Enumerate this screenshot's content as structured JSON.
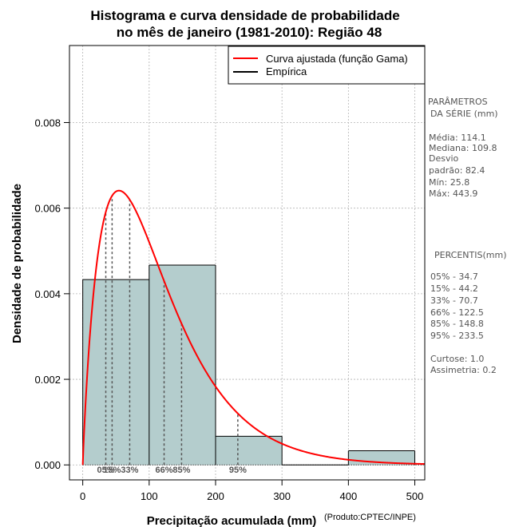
{
  "chart_data": {
    "type": "bar",
    "title_line1": "Histograma e curva densidade de probabilidade",
    "title_line2": "no mês de janeiro (1981-2010): Região 48",
    "xlabel": "Precipitação acumulada (mm)",
    "ylabel": "Densidade de probabilidade",
    "credit": "(Produto:CPTEC/INPE)",
    "xlim": [
      -20,
      515
    ],
    "ylim": [
      -0.00035,
      0.0098
    ],
    "x_ticks": [
      0,
      100,
      200,
      300,
      400,
      500
    ],
    "y_ticks": [
      0,
      0.002,
      0.004,
      0.006,
      0.008
    ],
    "y_tick_labels": [
      "0.000",
      "0.002",
      "0.004",
      "0.006",
      "0.008"
    ],
    "grid": true,
    "bins": [
      {
        "start": 0,
        "end": 100,
        "density": 0.00433
      },
      {
        "start": 100,
        "end": 200,
        "density": 0.00467
      },
      {
        "start": 200,
        "end": 300,
        "density": 0.00067
      },
      {
        "start": 300,
        "end": 400,
        "density": 0.0
      },
      {
        "start": 400,
        "end": 500,
        "density": 0.00033
      }
    ],
    "gamma_fit": {
      "shape": 1.9163,
      "scale": 59.54
    },
    "percentile_markers": [
      {
        "label": "05%",
        "value": 34.7
      },
      {
        "label": "15%",
        "value": 44.2
      },
      {
        "label": "33%",
        "value": 70.7
      },
      {
        "label": "66%",
        "value": 122.5
      },
      {
        "label": "85%",
        "value": 148.8
      },
      {
        "label": "95%",
        "value": 233.5
      }
    ],
    "legend": {
      "position": "top-right",
      "entries": [
        {
          "label": "Curva ajustada (função Gama)",
          "color": "#ff0000"
        },
        {
          "label": "Empírica",
          "color": "#000000"
        }
      ]
    },
    "colors": {
      "bar_fill": "#b4cdcd",
      "curve": "#ff0000",
      "grid": "#b3b3b3",
      "percentile": "#555555"
    }
  },
  "side_panel": {
    "params_title_1": "PARÂMETROS",
    "params_title_2": "DA SÉRIE (mm)",
    "stats": [
      "Média:  114.1",
      "Mediana:  109.8",
      "Desvio",
      "padrão:  82.4",
      "Mín:  25.8",
      "Máx:  443.9"
    ],
    "percentis_title": "PERCENTIS(mm)",
    "percentis": [
      "05% -  34.7",
      "15% -  44.2",
      "33% -  70.7",
      "66% -  122.5",
      "85% -  148.8",
      "95% -  233.5"
    ],
    "extra": [
      "Curtose:  1.0",
      "Assimetria:  0.2"
    ]
  }
}
